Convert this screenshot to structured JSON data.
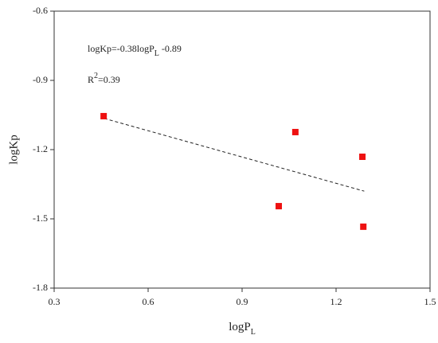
{
  "chart_data": {
    "type": "scatter",
    "x_label": [
      "logP",
      "L"
    ],
    "y_label": "logKp",
    "equation": [
      "logKp=-0.38logP",
      "L",
      " -0.89"
    ],
    "r_squared": [
      "R",
      "2",
      "=0.39"
    ],
    "series": [
      {
        "color": "#ee1111",
        "x": [
          0.458,
          1.07,
          1.284,
          1.017,
          1.287
        ],
        "values": [
          -1.055,
          -1.124,
          -1.231,
          -1.445,
          -1.534
        ]
      }
    ],
    "trendline": {
      "x": [
        0.46,
        1.29
      ],
      "values": [
        -1.065,
        -1.38
      ]
    },
    "xlim": [
      0.3,
      1.5
    ],
    "xticks": [
      0.3,
      0.6,
      0.9,
      1.2,
      1.5
    ],
    "ylim": [
      -1.8,
      -0.6
    ],
    "yticks": [
      -0.6,
      -0.9,
      -1.2,
      -1.5,
      -1.8
    ]
  }
}
